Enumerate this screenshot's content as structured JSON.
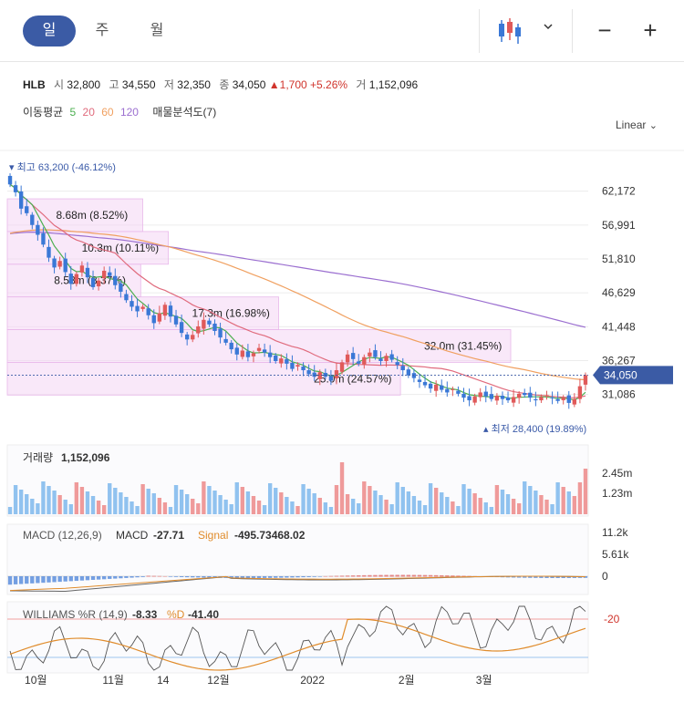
{
  "periods": {
    "day": "일",
    "week": "주",
    "month": "월"
  },
  "quote": {
    "symbol": "HLB",
    "open_label": "시",
    "open": "32,800",
    "high_label": "고",
    "high": "34,550",
    "low_label": "저",
    "low": "32,350",
    "close_label": "종",
    "close": "34,050",
    "change": "▲1,700",
    "change_pct": "+5.26%",
    "volume_label": "거",
    "volume": "1,152,096"
  },
  "overlays": {
    "label": "이동평균",
    "p5": "5",
    "p20": "20",
    "p60": "60",
    "p120": "120",
    "vp": "매물분석도(7)"
  },
  "scale_mode": "Linear",
  "colors": {
    "up": "#e05a5a",
    "down": "#3a78d6",
    "ma5": "#4caf50",
    "ma20": "#e06b7d",
    "ma60": "#f0a060",
    "ma120": "#9b6fd0",
    "vp": "#f4d6f4",
    "vol_up": "#ef9a9a",
    "vol_down": "#90c2ef"
  },
  "chart_data": {
    "type": "candlestick",
    "y_ticks": [
      "62,172",
      "56,991",
      "51,810",
      "46,629",
      "41,448",
      "36,267",
      "31,086"
    ],
    "ylim": [
      27000,
      67000
    ],
    "x_labels": [
      "10월",
      "11월",
      "14",
      "12월",
      "2022",
      "2월",
      "3월"
    ],
    "last_price": "34,050",
    "high_marker": "최고 63,200 (-46.12%)",
    "low_marker": "최저 28,400 (19.89%)",
    "volume_profile": [
      {
        "low": 56000,
        "high": 61000,
        "label": "8.68m (8.52%)",
        "fraction": 0.269
      },
      {
        "low": 51000,
        "high": 56000,
        "label": "10.3m (10.11%)",
        "fraction": 0.32
      },
      {
        "low": 46000,
        "high": 51000,
        "label": "8.53m (8.37%)",
        "fraction": 0.265
      },
      {
        "low": 41000,
        "high": 46000,
        "label": "17.3m (16.98%)",
        "fraction": 0.539
      },
      {
        "low": 36000,
        "high": 41000,
        "label": "32.0m (31.45%)",
        "fraction": 1.0
      },
      {
        "low": 31000,
        "high": 36000,
        "label": "25.0m (24.57%)",
        "fraction": 0.781
      }
    ],
    "closes": [
      63200,
      62000,
      59500,
      58800,
      57000,
      55500,
      54000,
      52000,
      50500,
      51500,
      49800,
      48000,
      49500,
      50800,
      49000,
      47500,
      48500,
      50000,
      49200,
      47800,
      46800,
      45500,
      44500,
      43800,
      44500,
      43200,
      42000,
      43500,
      44800,
      43000,
      41800,
      40500,
      39500,
      40200,
      41500,
      42500,
      41800,
      40800,
      39800,
      39000,
      38000,
      37200,
      37800,
      36800,
      37400,
      38200,
      37500,
      36800,
      36200,
      36600,
      35800,
      35000,
      35600,
      34800,
      34200,
      33800,
      34500,
      33800,
      33200,
      34800,
      36000,
      37200,
      36500,
      35800,
      36800,
      37500,
      36800,
      36200,
      37000,
      36400,
      35600,
      34800,
      34000,
      33600,
      33000,
      32500,
      32000,
      32600,
      31800,
      31400,
      31900,
      31200,
      30600,
      30200,
      30800,
      31400,
      30800,
      30400,
      30900,
      30400,
      30200,
      30700,
      31200,
      31000,
      30600,
      30200,
      30700,
      31000,
      30500,
      30100,
      30600,
      29800,
      30400,
      32350,
      34050
    ],
    "volume": {
      "y_ticks": [
        "2.45m",
        "1.23m"
      ],
      "title": "거래량",
      "value": "1,152,096"
    },
    "macd": {
      "title": "MACD (12,26,9)",
      "macd_label": "MACD",
      "macd_value": "-27.71",
      "signal_label": "Signal",
      "signal_value": "-495.73468.02",
      "y_ticks": [
        "11.2k",
        "5.61k",
        "0"
      ]
    },
    "williams": {
      "title": "WILLIAMS %R (14,9)",
      "r_value": "-8.33",
      "d_label": "%D",
      "d_value": "-41.40",
      "y_ticks": [
        "-20"
      ]
    }
  }
}
